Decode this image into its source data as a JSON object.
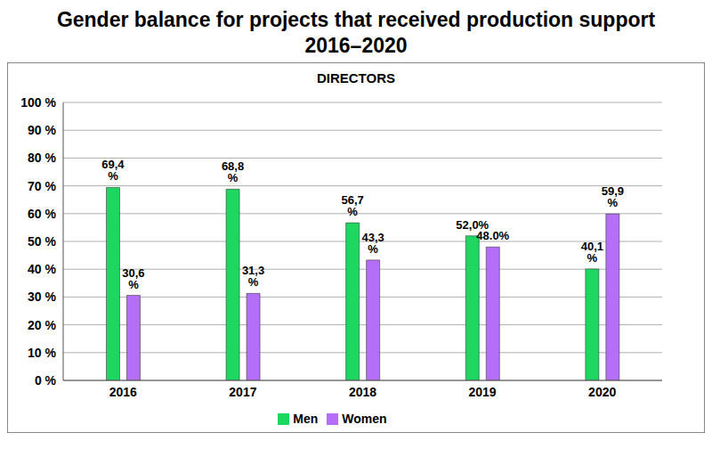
{
  "chart_data": {
    "type": "bar",
    "title": "Gender balance for projects that received production support 2016–2020",
    "subtitle": "DIRECTORS",
    "categories": [
      "2016",
      "2017",
      "2018",
      "2019",
      "2020"
    ],
    "series": [
      {
        "name": "Men",
        "color": "#1ed760",
        "values": [
          69.4,
          68.8,
          56.7,
          52.0,
          40.1
        ],
        "value_labels": [
          "69,4 %",
          "68,8 %",
          "56,7 %",
          "52,0%",
          "40,1 %"
        ]
      },
      {
        "name": "Women",
        "color": "#b56ef7",
        "values": [
          30.6,
          31.3,
          43.3,
          48.0,
          59.9
        ],
        "value_labels": [
          "30,6 %",
          "31,3 %",
          "43,3 %",
          "48.0%",
          "59,9 %"
        ]
      }
    ],
    "ylim": [
      0,
      100
    ],
    "yticks": [
      {
        "value": 0,
        "label": "0 %"
      },
      {
        "value": 10,
        "label": "10 %"
      },
      {
        "value": 20,
        "label": "20 %"
      },
      {
        "value": 30,
        "label": "30 %"
      },
      {
        "value": 40,
        "label": "40 %"
      },
      {
        "value": 50,
        "label": "50 %"
      },
      {
        "value": 60,
        "label": "60 %"
      },
      {
        "value": 70,
        "label": "70 %"
      },
      {
        "value": 80,
        "label": "80 %"
      },
      {
        "value": 90,
        "label": "90 %"
      },
      {
        "value": 100,
        "label": "100 %"
      }
    ],
    "grid": true,
    "legend": "bottom",
    "data_labels": true
  }
}
